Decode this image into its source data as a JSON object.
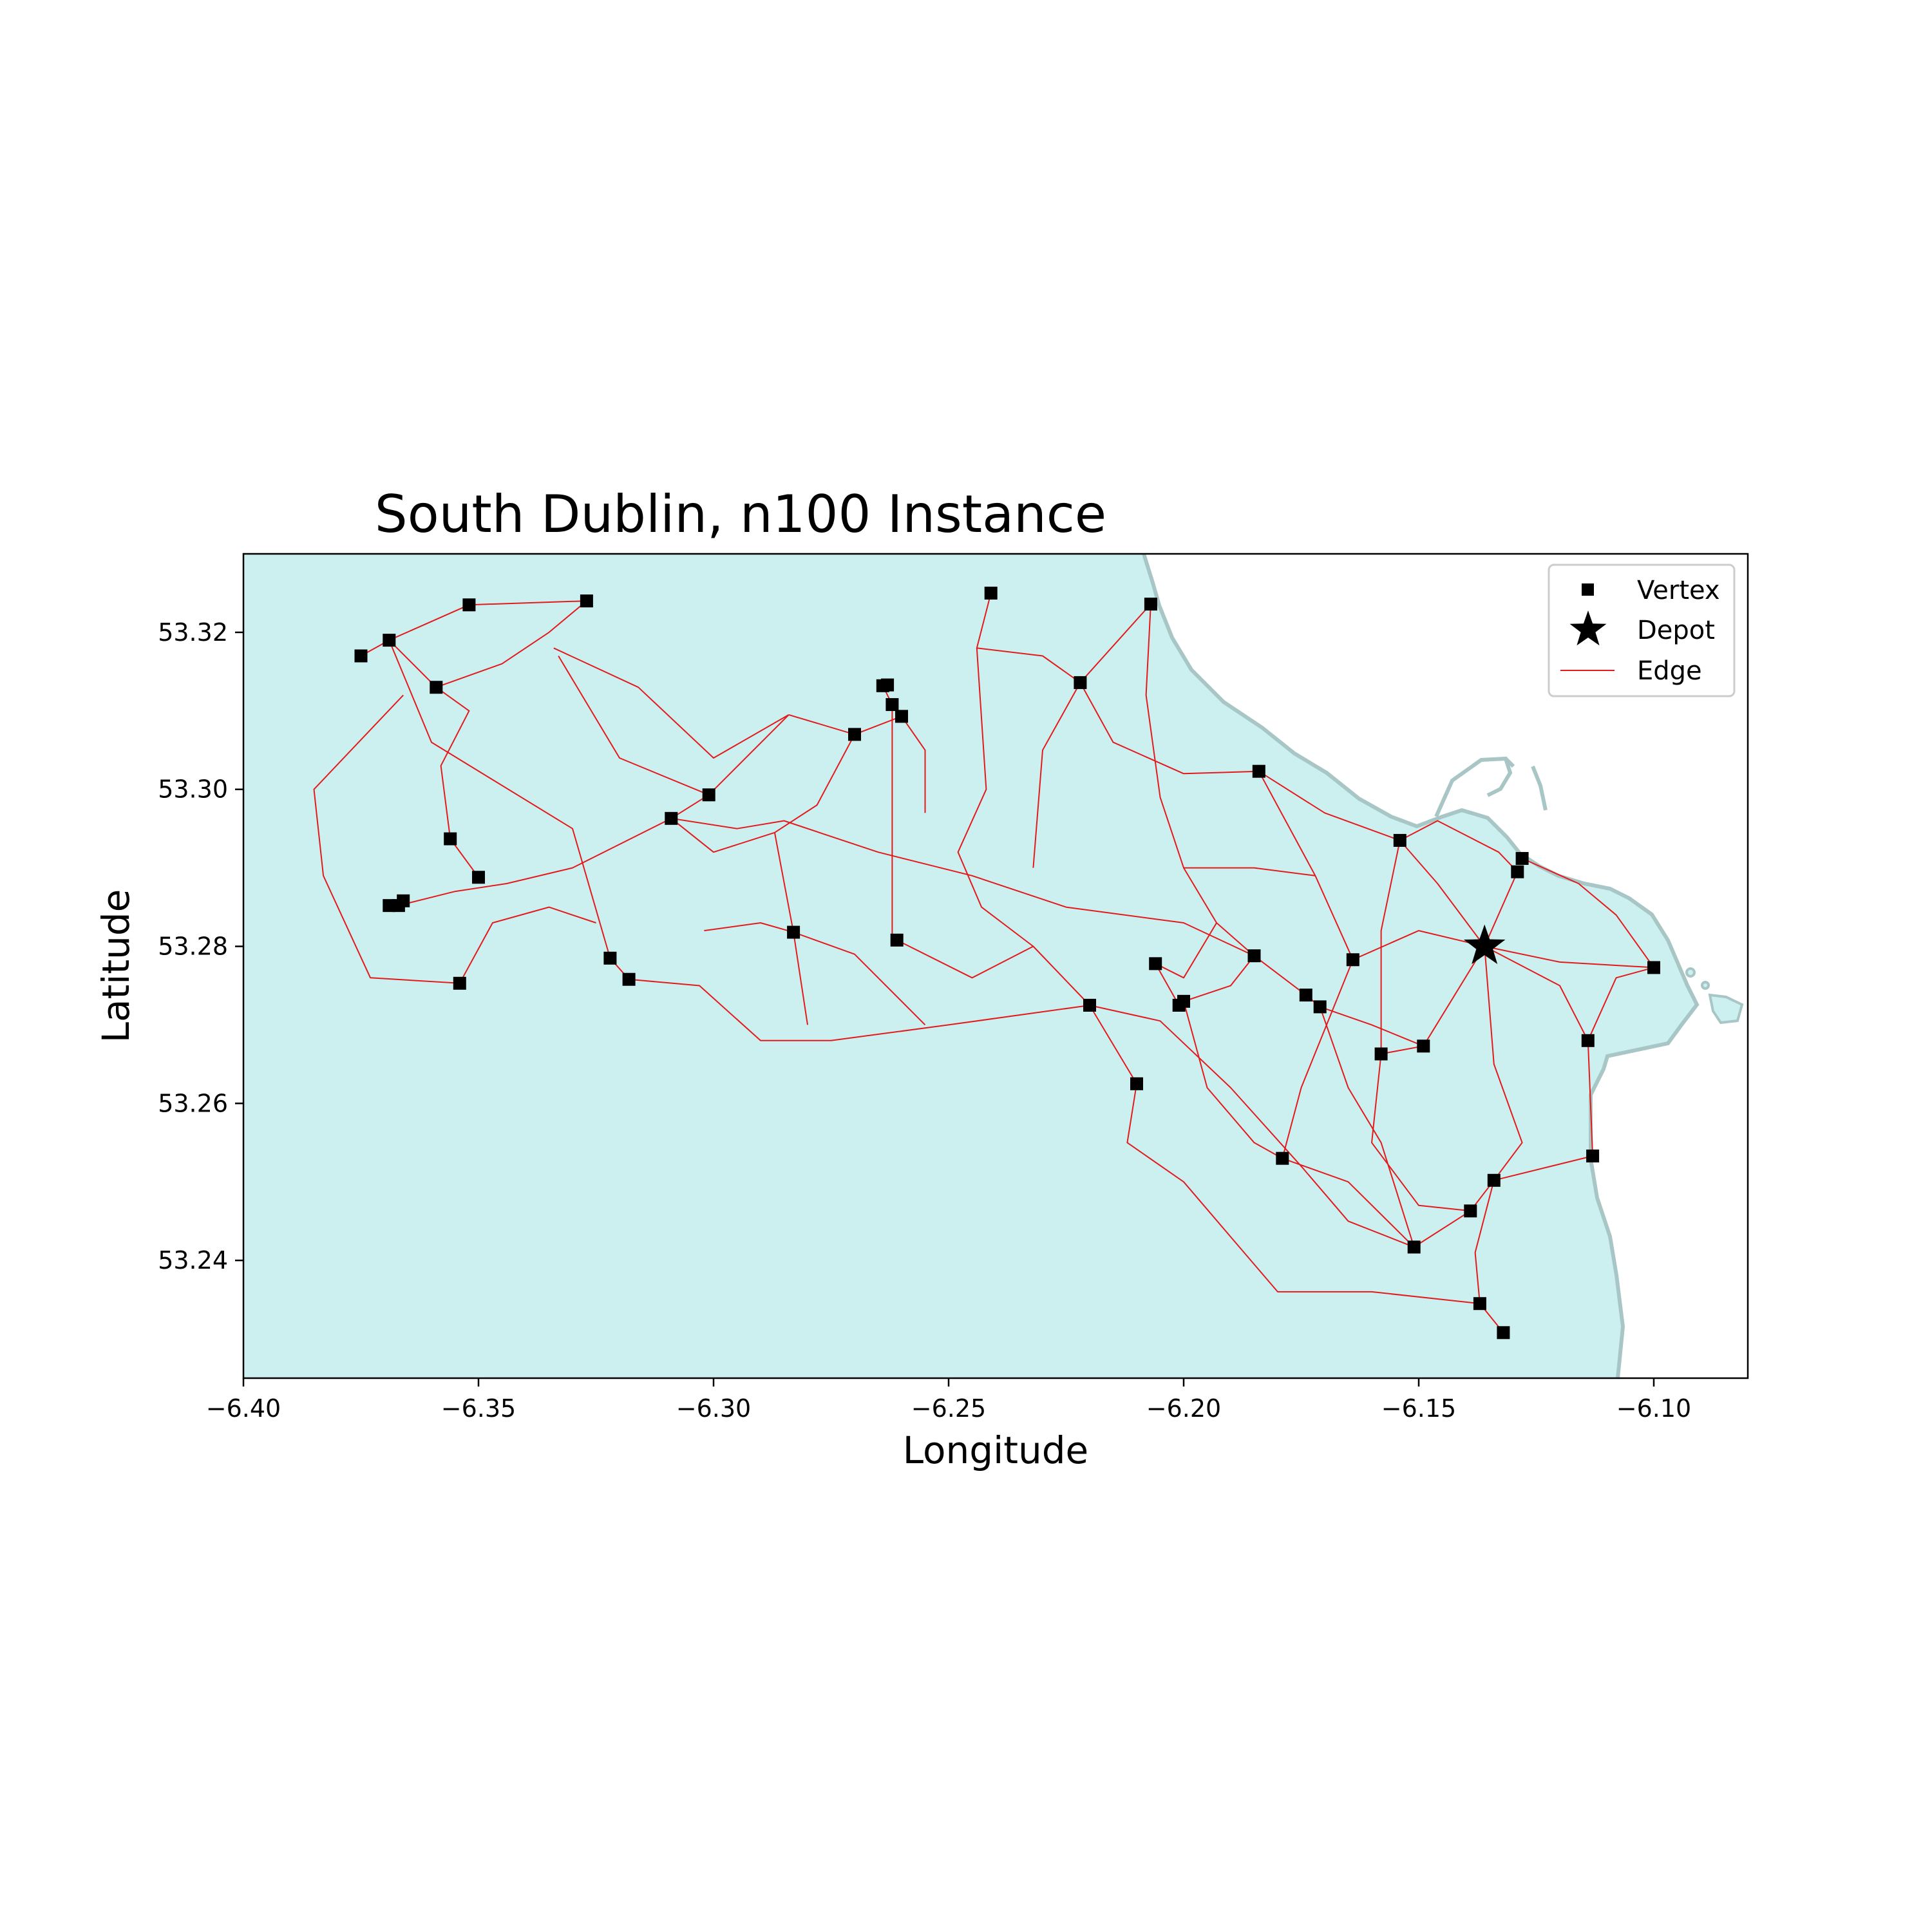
{
  "chart_data": {
    "type": "map",
    "title": "South Dublin, n100 Instance",
    "xlabel": "Longitude",
    "ylabel": "Latitude",
    "xlim": [
      -6.4,
      -6.08
    ],
    "ylim": [
      53.225,
      53.33
    ],
    "xticks": [
      -6.4,
      -6.35,
      -6.3,
      -6.25,
      -6.2,
      -6.15,
      -6.1
    ],
    "xtick_labels": [
      "−6.40",
      "−6.35",
      "−6.30",
      "−6.25",
      "−6.20",
      "−6.15",
      "−6.10"
    ],
    "yticks": [
      53.24,
      53.26,
      53.28,
      53.3,
      53.32
    ],
    "ytick_labels": [
      "53.24",
      "53.26",
      "53.28",
      "53.30",
      "53.32"
    ],
    "grid": false,
    "legend_position": "top-right",
    "legend": [
      {
        "label": "Vertex",
        "marker": "square"
      },
      {
        "label": "Depot",
        "marker": "star"
      },
      {
        "label": "Edge",
        "marker": "line"
      }
    ],
    "colors": {
      "land": "#ccf0f0",
      "coast": "#a9c6c6",
      "edge": "#e31a1c",
      "vertex": "#000000",
      "depot": "#000000"
    },
    "depot": {
      "lon": -6.136,
      "lat": 53.28
    },
    "vertices": [
      [
        -6.375,
        53.317
      ],
      [
        -6.369,
        53.319
      ],
      [
        -6.352,
        53.3235
      ],
      [
        -6.327,
        53.324
      ],
      [
        -6.359,
        53.313
      ],
      [
        -6.356,
        53.2937
      ],
      [
        -6.35,
        53.2888
      ],
      [
        -6.369,
        53.2852
      ],
      [
        -6.367,
        53.2852
      ],
      [
        -6.366,
        53.2858
      ],
      [
        -6.354,
        53.2753
      ],
      [
        -6.322,
        53.2785
      ],
      [
        -6.318,
        53.2758
      ],
      [
        -6.309,
        53.2963
      ],
      [
        -6.301,
        53.2993
      ],
      [
        -6.283,
        53.2818
      ],
      [
        -6.27,
        53.307
      ],
      [
        -6.264,
        53.3132
      ],
      [
        -6.263,
        53.3133
      ],
      [
        -6.262,
        53.3108
      ],
      [
        -6.26,
        53.3093
      ],
      [
        -6.261,
        53.2808
      ],
      [
        -6.241,
        53.325
      ],
      [
        -6.222,
        53.3136
      ],
      [
        -6.207,
        53.3236
      ],
      [
        -6.22,
        53.2725
      ],
      [
        -6.21,
        53.2625
      ],
      [
        -6.206,
        53.2778
      ],
      [
        -6.201,
        53.2725
      ],
      [
        -6.2,
        53.273
      ],
      [
        -6.184,
        53.3023
      ],
      [
        -6.185,
        53.2788
      ],
      [
        -6.179,
        53.253
      ],
      [
        -6.174,
        53.2738
      ],
      [
        -6.171,
        53.2723
      ],
      [
        -6.164,
        53.2783
      ],
      [
        -6.158,
        53.2663
      ],
      [
        -6.154,
        53.2935
      ],
      [
        -6.151,
        53.2417
      ],
      [
        -6.149,
        53.2673
      ],
      [
        -6.139,
        53.2463
      ],
      [
        -6.137,
        53.2345
      ],
      [
        -6.134,
        53.2502
      ],
      [
        -6.132,
        53.2308
      ],
      [
        -6.129,
        53.2895
      ],
      [
        -6.128,
        53.2912
      ],
      [
        -6.114,
        53.268
      ],
      [
        -6.113,
        53.2533
      ],
      [
        -6.1,
        53.2773
      ]
    ],
    "edges": [
      [
        [
          -6.369,
          53.319
        ],
        [
          -6.36,
          53.306
        ],
        [
          -6.33,
          53.295
        ],
        [
          -6.322,
          53.2785
        ]
      ],
      [
        [
          -6.322,
          53.2785
        ],
        [
          -6.318,
          53.2758
        ]
      ],
      [
        [
          -6.375,
          53.317
        ],
        [
          -6.369,
          53.319
        ]
      ],
      [
        [
          -6.369,
          53.319
        ],
        [
          -6.352,
          53.3235
        ]
      ],
      [
        [
          -6.352,
          53.3235
        ],
        [
          -6.327,
          53.324
        ]
      ],
      [
        [
          -6.369,
          53.319
        ],
        [
          -6.359,
          53.313
        ]
      ],
      [
        [
          -6.359,
          53.313
        ],
        [
          -6.345,
          53.316
        ],
        [
          -6.335,
          53.32
        ],
        [
          -6.327,
          53.324
        ]
      ],
      [
        [
          -6.366,
          53.312
        ],
        [
          -6.385,
          53.3
        ],
        [
          -6.383,
          53.289
        ],
        [
          -6.373,
          53.276
        ],
        [
          -6.354,
          53.2753
        ]
      ],
      [
        [
          -6.367,
          53.2852
        ],
        [
          -6.355,
          53.287
        ],
        [
          -6.344,
          53.288
        ],
        [
          -6.33,
          53.29
        ],
        [
          -6.309,
          53.2963
        ]
      ],
      [
        [
          -6.354,
          53.2753
        ],
        [
          -6.347,
          53.283
        ],
        [
          -6.335,
          53.285
        ],
        [
          -6.325,
          53.283
        ]
      ],
      [
        [
          -6.318,
          53.2758
        ],
        [
          -6.303,
          53.275
        ],
        [
          -6.29,
          53.268
        ],
        [
          -6.275,
          53.268
        ],
        [
          -6.25,
          53.27
        ],
        [
          -6.22,
          53.2725
        ]
      ],
      [
        [
          -6.334,
          53.318
        ],
        [
          -6.316,
          53.313
        ],
        [
          -6.3,
          53.304
        ],
        [
          -6.284,
          53.3095
        ]
      ],
      [
        [
          -6.309,
          53.2963
        ],
        [
          -6.301,
          53.2993
        ]
      ],
      [
        [
          -6.301,
          53.2993
        ],
        [
          -6.284,
          53.3095
        ]
      ],
      [
        [
          -6.333,
          53.317
        ],
        [
          -6.32,
          53.304
        ],
        [
          -6.301,
          53.2993
        ]
      ],
      [
        [
          -6.309,
          53.2963
        ],
        [
          -6.295,
          53.295
        ],
        [
          -6.285,
          53.296
        ],
        [
          -6.265,
          53.292
        ],
        [
          -6.245,
          53.289
        ],
        [
          -6.225,
          53.285
        ],
        [
          -6.2,
          53.283
        ],
        [
          -6.185,
          53.2788
        ]
      ],
      [
        [
          -6.284,
          53.3095
        ],
        [
          -6.27,
          53.307
        ],
        [
          -6.26,
          53.3093
        ],
        [
          -6.255,
          53.305
        ],
        [
          -6.255,
          53.297
        ]
      ],
      [
        [
          -6.264,
          53.3132
        ],
        [
          -6.262,
          53.3108
        ],
        [
          -6.26,
          53.3093
        ]
      ],
      [
        [
          -6.287,
          53.2945
        ],
        [
          -6.283,
          53.2818
        ]
      ],
      [
        [
          -6.302,
          53.282
        ],
        [
          -6.29,
          53.283
        ],
        [
          -6.283,
          53.2818
        ],
        [
          -6.27,
          53.279
        ],
        [
          -6.255,
          53.27
        ]
      ],
      [
        [
          -6.262,
          53.3108
        ],
        [
          -6.262,
          53.296
        ],
        [
          -6.262,
          53.2808
        ]
      ],
      [
        [
          -6.241,
          53.325
        ],
        [
          -6.244,
          53.318
        ],
        [
          -6.23,
          53.317
        ],
        [
          -6.222,
          53.3136
        ]
      ],
      [
        [
          -6.222,
          53.3136
        ],
        [
          -6.215,
          53.306
        ],
        [
          -6.2,
          53.302
        ],
        [
          -6.184,
          53.3023
        ]
      ],
      [
        [
          -6.207,
          53.3236
        ],
        [
          -6.222,
          53.3136
        ]
      ],
      [
        [
          -6.244,
          53.318
        ],
        [
          -6.242,
          53.3
        ],
        [
          -6.248,
          53.292
        ],
        [
          -6.243,
          53.285
        ],
        [
          -6.232,
          53.28
        ],
        [
          -6.22,
          53.2725
        ]
      ],
      [
        [
          -6.207,
          53.3236
        ],
        [
          -6.208,
          53.312
        ],
        [
          -6.205,
          53.299
        ],
        [
          -6.2,
          53.29
        ],
        [
          -6.193,
          53.283
        ],
        [
          -6.185,
          53.2788
        ]
      ],
      [
        [
          -6.184,
          53.3023
        ],
        [
          -6.17,
          53.297
        ],
        [
          -6.154,
          53.2935
        ],
        [
          -6.146,
          53.296
        ],
        [
          -6.133,
          53.292
        ],
        [
          -6.129,
          53.2895
        ]
      ],
      [
        [
          -6.185,
          53.2788
        ],
        [
          -6.174,
          53.2738
        ],
        [
          -6.171,
          53.2723
        ],
        [
          -6.16,
          53.27
        ],
        [
          -6.149,
          53.2673
        ]
      ],
      [
        [
          -6.22,
          53.2725
        ],
        [
          -6.205,
          53.2705
        ],
        [
          -6.19,
          53.262
        ],
        [
          -6.175,
          53.252
        ],
        [
          -6.165,
          53.245
        ],
        [
          -6.151,
          53.2417
        ]
      ],
      [
        [
          -6.151,
          53.2417
        ],
        [
          -6.139,
          53.2463
        ],
        [
          -6.134,
          53.2502
        ],
        [
          -6.113,
          53.2533
        ]
      ],
      [
        [
          -6.22,
          53.2725
        ],
        [
          -6.21,
          53.2625
        ],
        [
          -6.212,
          53.255
        ],
        [
          -6.2,
          53.25
        ],
        [
          -6.19,
          53.243
        ],
        [
          -6.18,
          53.236
        ],
        [
          -6.16,
          53.236
        ],
        [
          -6.137,
          53.2345
        ]
      ],
      [
        [
          -6.137,
          53.2345
        ],
        [
          -6.132,
          53.2308
        ]
      ],
      [
        [
          -6.206,
          53.2778
        ],
        [
          -6.201,
          53.2725
        ],
        [
          -6.2,
          53.273
        ]
      ],
      [
        [
          -6.2,
          53.273
        ],
        [
          -6.19,
          53.275
        ],
        [
          -6.185,
          53.2788
        ]
      ],
      [
        [
          -6.164,
          53.2783
        ],
        [
          -6.15,
          53.282
        ],
        [
          -6.136,
          53.28
        ]
      ],
      [
        [
          -6.136,
          53.28
        ],
        [
          -6.129,
          53.2895
        ]
      ],
      [
        [
          -6.136,
          53.28
        ],
        [
          -6.12,
          53.275
        ],
        [
          -6.114,
          53.268
        ],
        [
          -6.113,
          53.2533
        ]
      ],
      [
        [
          -6.136,
          53.28
        ],
        [
          -6.149,
          53.2673
        ],
        [
          -6.158,
          53.2663
        ]
      ],
      [
        [
          -6.136,
          53.28
        ],
        [
          -6.134,
          53.265
        ],
        [
          -6.128,
          53.255
        ],
        [
          -6.134,
          53.2502
        ]
      ],
      [
        [
          -6.136,
          53.28
        ],
        [
          -6.12,
          53.278
        ],
        [
          -6.1,
          53.2773
        ]
      ],
      [
        [
          -6.154,
          53.2935
        ],
        [
          -6.158,
          53.282
        ],
        [
          -6.158,
          53.2663
        ],
        [
          -6.16,
          53.255
        ],
        [
          -6.15,
          53.247
        ],
        [
          -6.139,
          53.2463
        ]
      ],
      [
        [
          -6.184,
          53.3023
        ],
        [
          -6.172,
          53.289
        ],
        [
          -6.164,
          53.2783
        ],
        [
          -6.175,
          53.262
        ],
        [
          -6.179,
          53.253
        ]
      ],
      [
        [
          -6.179,
          53.253
        ],
        [
          -6.165,
          53.25
        ],
        [
          -6.151,
          53.2417
        ]
      ],
      [
        [
          -6.134,
          53.2502
        ],
        [
          -6.138,
          53.241
        ],
        [
          -6.137,
          53.2345
        ]
      ],
      [
        [
          -6.114,
          53.268
        ],
        [
          -6.108,
          53.276
        ],
        [
          -6.1,
          53.2773
        ]
      ],
      [
        [
          -6.128,
          53.2912
        ],
        [
          -6.116,
          53.288
        ],
        [
          -6.108,
          53.284
        ],
        [
          -6.1,
          53.2773
        ]
      ],
      [
        [
          -6.154,
          53.2935
        ],
        [
          -6.146,
          53.288
        ],
        [
          -6.136,
          53.28
        ]
      ],
      [
        [
          -6.222,
          53.3136
        ],
        [
          -6.23,
          53.305
        ],
        [
          -6.232,
          53.29
        ]
      ],
      [
        [
          -6.27,
          53.307
        ],
        [
          -6.278,
          53.298
        ],
        [
          -6.287,
          53.2945
        ],
        [
          -6.3,
          53.292
        ],
        [
          -6.309,
          53.2963
        ]
      ],
      [
        [
          -6.283,
          53.2818
        ],
        [
          -6.28,
          53.27
        ]
      ],
      [
        [
          -6.261,
          53.2808
        ],
        [
          -6.245,
          53.276
        ],
        [
          -6.232,
          53.28
        ]
      ],
      [
        [
          -6.2,
          53.29
        ],
        [
          -6.185,
          53.29
        ],
        [
          -6.172,
          53.289
        ]
      ],
      [
        [
          -6.193,
          53.283
        ],
        [
          -6.2,
          53.276
        ],
        [
          -6.206,
          53.2778
        ]
      ],
      [
        [
          -6.2,
          53.273
        ],
        [
          -6.195,
          53.262
        ],
        [
          -6.185,
          53.255
        ],
        [
          -6.179,
          53.253
        ]
      ],
      [
        [
          -6.171,
          53.2723
        ],
        [
          -6.165,
          53.262
        ],
        [
          -6.158,
          53.255
        ],
        [
          -6.151,
          53.2417
        ]
      ],
      [
        [
          -6.35,
          53.2888
        ],
        [
          -6.356,
          53.2937
        ]
      ],
      [
        [
          -6.356,
          53.2937
        ],
        [
          -6.358,
          53.303
        ],
        [
          -6.352,
          53.31
        ],
        [
          -6.359,
          53.313
        ]
      ]
    ]
  }
}
